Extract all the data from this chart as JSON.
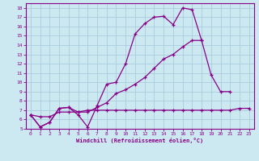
{
  "xlabel": "Windchill (Refroidissement éolien,°C)",
  "background_color": "#cce8f0",
  "line_color": "#880088",
  "grid_color": "#aaccdd",
  "xlim": [
    -0.5,
    23.5
  ],
  "ylim": [
    5,
    18.5
  ],
  "xticks": [
    0,
    1,
    2,
    3,
    4,
    5,
    6,
    7,
    8,
    9,
    10,
    11,
    12,
    13,
    14,
    15,
    16,
    17,
    18,
    19,
    20,
    21,
    22,
    23
  ],
  "yticks": [
    5,
    6,
    7,
    8,
    9,
    10,
    11,
    12,
    13,
    14,
    15,
    16,
    17,
    18
  ],
  "line1_x": [
    0,
    1,
    2,
    3,
    4,
    5,
    6,
    7,
    8,
    9,
    10,
    11,
    12,
    13,
    14,
    15,
    16,
    17,
    18
  ],
  "line1_y": [
    6.5,
    5.2,
    5.7,
    7.2,
    7.3,
    6.5,
    5.2,
    7.5,
    9.8,
    10.0,
    12.0,
    15.2,
    16.3,
    17.0,
    17.1,
    16.2,
    18.0,
    17.8,
    14.5
  ],
  "line2_x": [
    0,
    1,
    2,
    3,
    4,
    5,
    6,
    7,
    8,
    9,
    10,
    11,
    12,
    13,
    14,
    15,
    16,
    17,
    18,
    19,
    20,
    21
  ],
  "line2_y": [
    6.5,
    5.2,
    5.7,
    7.2,
    7.3,
    6.8,
    6.8,
    7.3,
    7.8,
    8.8,
    9.2,
    9.8,
    10.5,
    11.5,
    12.5,
    13.0,
    13.8,
    14.5,
    14.5,
    10.8,
    9.0,
    9.0
  ],
  "line3_x": [
    0,
    1,
    2,
    3,
    4,
    5,
    6,
    7,
    8,
    9,
    10,
    11,
    12,
    13,
    14,
    15,
    16,
    17,
    18,
    19,
    20,
    21,
    22,
    23
  ],
  "line3_y": [
    6.5,
    6.3,
    6.3,
    6.8,
    6.8,
    6.8,
    7.0,
    7.0,
    7.0,
    7.0,
    7.0,
    7.0,
    7.0,
    7.0,
    7.0,
    7.0,
    7.0,
    7.0,
    7.0,
    7.0,
    7.0,
    7.0,
    7.2,
    7.2
  ]
}
